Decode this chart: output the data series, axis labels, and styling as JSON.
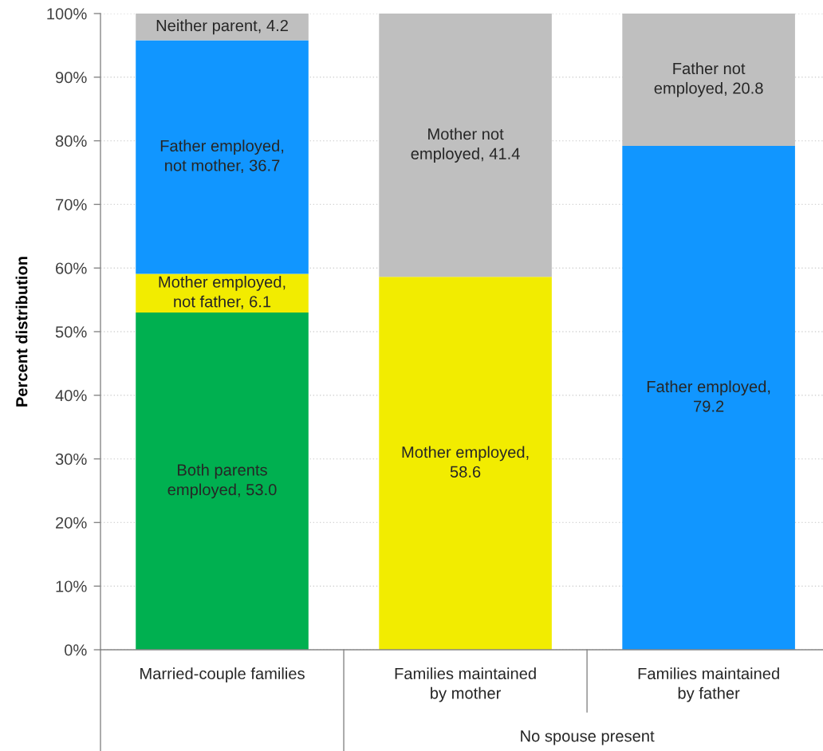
{
  "chart_data": {
    "type": "bar",
    "stacked": true,
    "ylabel": "Percent distribution",
    "categories": [
      "Married-couple families",
      "Families maintained\nby mother",
      "Families maintained\nby father"
    ],
    "series": [
      {
        "color": "#00b050",
        "values": [
          53.0,
          null,
          null
        ],
        "value_labels": [
          "Both parents\nemployed, 53.0",
          null,
          null
        ]
      },
      {
        "color": "#f2ec00",
        "values": [
          6.1,
          58.6,
          null
        ],
        "value_labels": [
          "Mother employed,\nnot father, 6.1",
          "Mother employed,\n58.6",
          null
        ]
      },
      {
        "color": "#1196ff",
        "values": [
          36.7,
          null,
          79.2
        ],
        "value_labels": [
          "Father employed,\nnot mother, 36.7",
          null,
          "Father employed,\n79.2"
        ]
      },
      {
        "color": "#bfbfbf",
        "values": [
          4.2,
          41.4,
          20.8
        ],
        "value_labels": [
          "Neither parent, 4.2",
          "Mother not\nemployed, 41.4",
          "Father not\nemployed, 20.8"
        ]
      }
    ],
    "ylim": [
      0,
      100
    ],
    "yticks": [
      {
        "value": 0,
        "label": "0%"
      },
      {
        "value": 10,
        "label": "10%"
      },
      {
        "value": 20,
        "label": "20%"
      },
      {
        "value": 30,
        "label": "30%"
      },
      {
        "value": 40,
        "label": "40%"
      },
      {
        "value": 50,
        "label": "50%"
      },
      {
        "value": 60,
        "label": "60%"
      },
      {
        "value": 70,
        "label": "70%"
      },
      {
        "value": 80,
        "label": "80%"
      },
      {
        "value": 90,
        "label": "90%"
      },
      {
        "value": 100,
        "label": "100%"
      }
    ],
    "grid": "y",
    "annotations": [
      "No spouse present"
    ]
  }
}
